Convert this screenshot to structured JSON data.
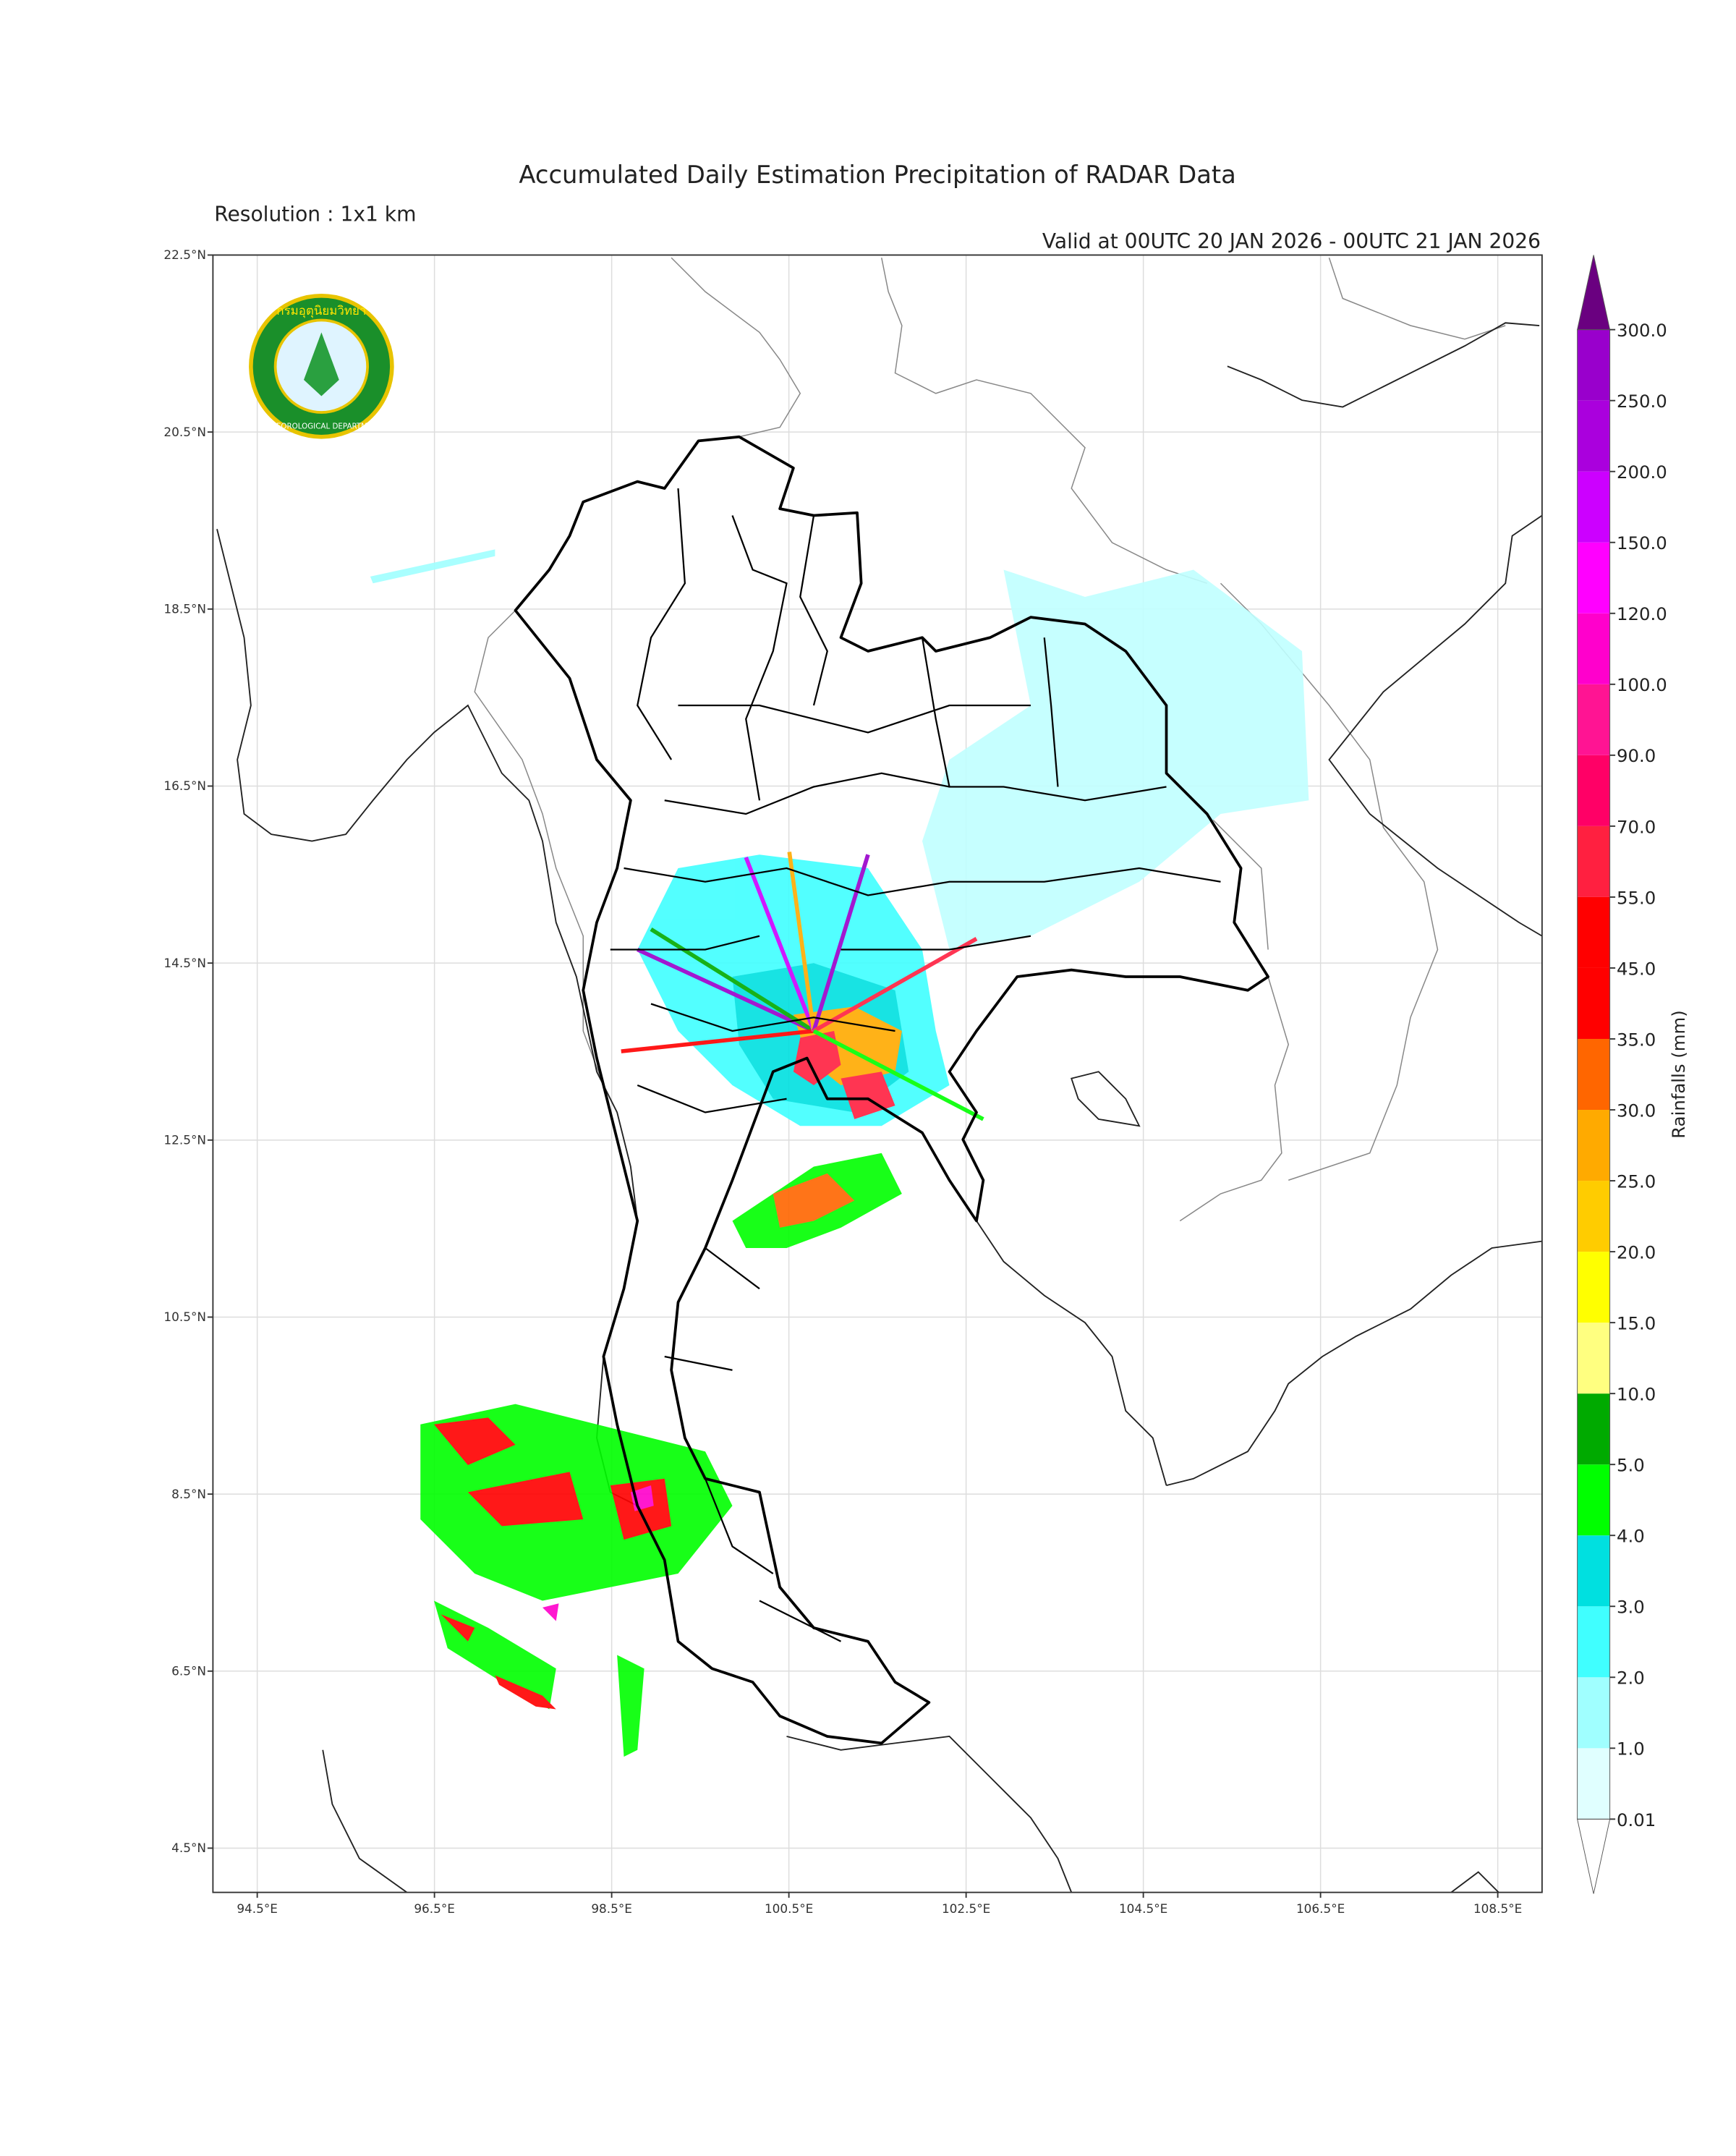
{
  "title": "Accumulated Daily Estimation Precipitation of RADAR Data",
  "subtitle": "Resolution : 1x1 km",
  "valid": "Valid at 00UTC 20 JAN 2026 - 00UTC 21 JAN 2026",
  "logo": {
    "thai": "กรมอุตุนิยมวิทยา",
    "english": "METEOROLOGICAL DEPARTMENT"
  },
  "map": {
    "xlim": [
      94,
      109
    ],
    "ylim": [
      4,
      22.5
    ],
    "grid": true,
    "lon_ticks": [
      {
        "value": 94.5,
        "label": "94.5°E"
      },
      {
        "value": 96.5,
        "label": "96.5°E"
      },
      {
        "value": 98.5,
        "label": "98.5°E"
      },
      {
        "value": 100.5,
        "label": "100.5°E"
      },
      {
        "value": 102.5,
        "label": "102.5°E"
      },
      {
        "value": 104.5,
        "label": "104.5°E"
      },
      {
        "value": 106.5,
        "label": "106.5°E"
      },
      {
        "value": 108.5,
        "label": "108.5°E"
      }
    ],
    "lat_ticks": [
      {
        "value": 4.5,
        "label": "4.5°N"
      },
      {
        "value": 6.5,
        "label": "6.5°N"
      },
      {
        "value": 8.5,
        "label": "8.5°N"
      },
      {
        "value": 10.5,
        "label": "10.5°N"
      },
      {
        "value": 12.5,
        "label": "12.5°N"
      },
      {
        "value": 14.5,
        "label": "14.5°N"
      },
      {
        "value": 16.5,
        "label": "16.5°N"
      },
      {
        "value": 18.5,
        "label": "18.5°N"
      },
      {
        "value": 20.5,
        "label": "20.5°N"
      },
      {
        "value": 22.5,
        "label": "22.5°N"
      }
    ]
  },
  "colorbar": {
    "label": "Rainfalls (mm)",
    "levels": [
      {
        "value": 0.01,
        "label": "0.01"
      },
      {
        "value": 1,
        "label": "1.0"
      },
      {
        "value": 2,
        "label": "2.0"
      },
      {
        "value": 3,
        "label": "3.0"
      },
      {
        "value": 4,
        "label": "4.0"
      },
      {
        "value": 5,
        "label": "5.0"
      },
      {
        "value": 10,
        "label": "10.0"
      },
      {
        "value": 15,
        "label": "15.0"
      },
      {
        "value": 20,
        "label": "20.0"
      },
      {
        "value": 25,
        "label": "25.0"
      },
      {
        "value": 30,
        "label": "30.0"
      },
      {
        "value": 35,
        "label": "35.0"
      },
      {
        "value": 45,
        "label": "45.0"
      },
      {
        "value": 55,
        "label": "55.0"
      },
      {
        "value": 70,
        "label": "70.0"
      },
      {
        "value": 90,
        "label": "90.0"
      },
      {
        "value": 100,
        "label": "100.0"
      },
      {
        "value": 120,
        "label": "120.0"
      },
      {
        "value": 150,
        "label": "150.0"
      },
      {
        "value": 200,
        "label": "200.0"
      },
      {
        "value": 250,
        "label": "250.0"
      },
      {
        "value": 300,
        "label": "300.0"
      }
    ],
    "colors": [
      "#e0ffff",
      "#a0ffff",
      "#40ffff",
      "#00e0e0",
      "#00ff00",
      "#00aa00",
      "#ffff80",
      "#ffff00",
      "#ffcc00",
      "#ffaa00",
      "#ff6600",
      "#ff0000",
      "#ff0000",
      "#ff2040",
      "#ff0066",
      "#ff1493",
      "#ff00cc",
      "#ff00ff",
      "#cc00ff",
      "#aa00dd",
      "#9900cc"
    ],
    "over_color": "#6a0080",
    "under_color": "#ffffff"
  }
}
